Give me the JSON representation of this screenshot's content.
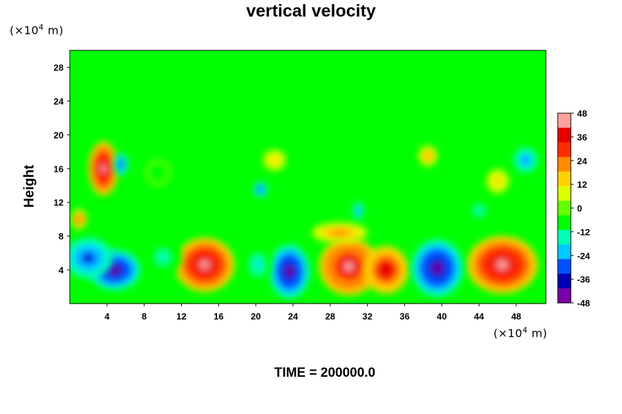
{
  "chart_data": {
    "type": "heatmap",
    "title": "vertical velocity",
    "ylabel": "Height",
    "xlabel": "",
    "y_unit": {
      "prefix": "(×10",
      "exp": "4",
      "suffix": " m)"
    },
    "x_unit": {
      "prefix": "(×10",
      "exp": "4",
      "suffix": " m)"
    },
    "xlim": [
      0,
      51.2
    ],
    "ylim": [
      0,
      30
    ],
    "x_ticks": [
      4,
      8,
      12,
      16,
      20,
      24,
      28,
      32,
      36,
      40,
      44,
      48
    ],
    "y_ticks": [
      4,
      8,
      12,
      16,
      20,
      24,
      28
    ],
    "colorbar": {
      "range": [
        -48,
        48
      ],
      "ticks": [
        48,
        36,
        24,
        12,
        0,
        -12,
        -24,
        -36,
        -48
      ],
      "colors": [
        "#7a00a8",
        "#0000b4",
        "#0050ff",
        "#00c8ff",
        "#00ffb4",
        "#00ff00",
        "#64ff00",
        "#dcff00",
        "#ffd200",
        "#ff8c00",
        "#ff2d00",
        "#e60000",
        "#ffa0a0"
      ]
    },
    "features": [
      {
        "x": 14.5,
        "y": 4.6,
        "rx": 3.2,
        "ry": 3.2,
        "w": 48
      },
      {
        "x": 30.0,
        "y": 4.4,
        "rx": 3.2,
        "ry": 3.4,
        "w": 44
      },
      {
        "x": 34.0,
        "y": 4.0,
        "rx": 2.4,
        "ry": 2.8,
        "w": 42
      },
      {
        "x": 46.5,
        "y": 4.6,
        "rx": 3.8,
        "ry": 3.4,
        "w": 48
      },
      {
        "x": 23.6,
        "y": 3.8,
        "rx": 2.2,
        "ry": 3.2,
        "w": -48
      },
      {
        "x": 39.5,
        "y": 4.2,
        "rx": 2.8,
        "ry": 3.4,
        "w": -48
      },
      {
        "x": 4.8,
        "y": 4.0,
        "rx": 2.8,
        "ry": 2.4,
        "w": -48
      },
      {
        "x": 2.0,
        "y": 5.4,
        "rx": 2.6,
        "ry": 2.4,
        "w": -38
      },
      {
        "x": 3.6,
        "y": 16.0,
        "rx": 1.6,
        "ry": 3.2,
        "w": 48
      },
      {
        "x": 5.5,
        "y": 16.5,
        "rx": 0.8,
        "ry": 1.4,
        "w": -36
      },
      {
        "x": 20.2,
        "y": 4.6,
        "rx": 1.4,
        "ry": 2.2,
        "w": -20
      },
      {
        "x": 20.5,
        "y": 13.5,
        "rx": 0.8,
        "ry": 1.0,
        "w": -34
      },
      {
        "x": 31.0,
        "y": 11.0,
        "rx": 0.6,
        "ry": 1.2,
        "w": -30
      },
      {
        "x": 49.0,
        "y": 17.0,
        "rx": 1.4,
        "ry": 1.6,
        "w": -30
      },
      {
        "x": 10.0,
        "y": 5.5,
        "rx": 2.0,
        "ry": 2.2,
        "w": -14
      },
      {
        "x": 29.0,
        "y": 8.4,
        "rx": 3.0,
        "ry": 1.2,
        "w": 24
      },
      {
        "x": 38.5,
        "y": 17.5,
        "rx": 1.0,
        "ry": 1.2,
        "w": 20
      },
      {
        "x": 22.0,
        "y": 17.0,
        "rx": 1.2,
        "ry": 1.2,
        "w": 16
      },
      {
        "x": 46.0,
        "y": 14.5,
        "rx": 1.2,
        "ry": 1.4,
        "w": 16
      },
      {
        "x": 44.0,
        "y": 11.0,
        "rx": 1.4,
        "ry": 1.4,
        "w": -14
      },
      {
        "x": 1.0,
        "y": 10.0,
        "rx": 0.8,
        "ry": 1.2,
        "w": 30
      },
      {
        "x": 9.5,
        "y": 15.5,
        "rx": 1.4,
        "ry": 1.6,
        "w": -12
      }
    ]
  },
  "footer": {
    "label": "TIME = 200000.0"
  }
}
